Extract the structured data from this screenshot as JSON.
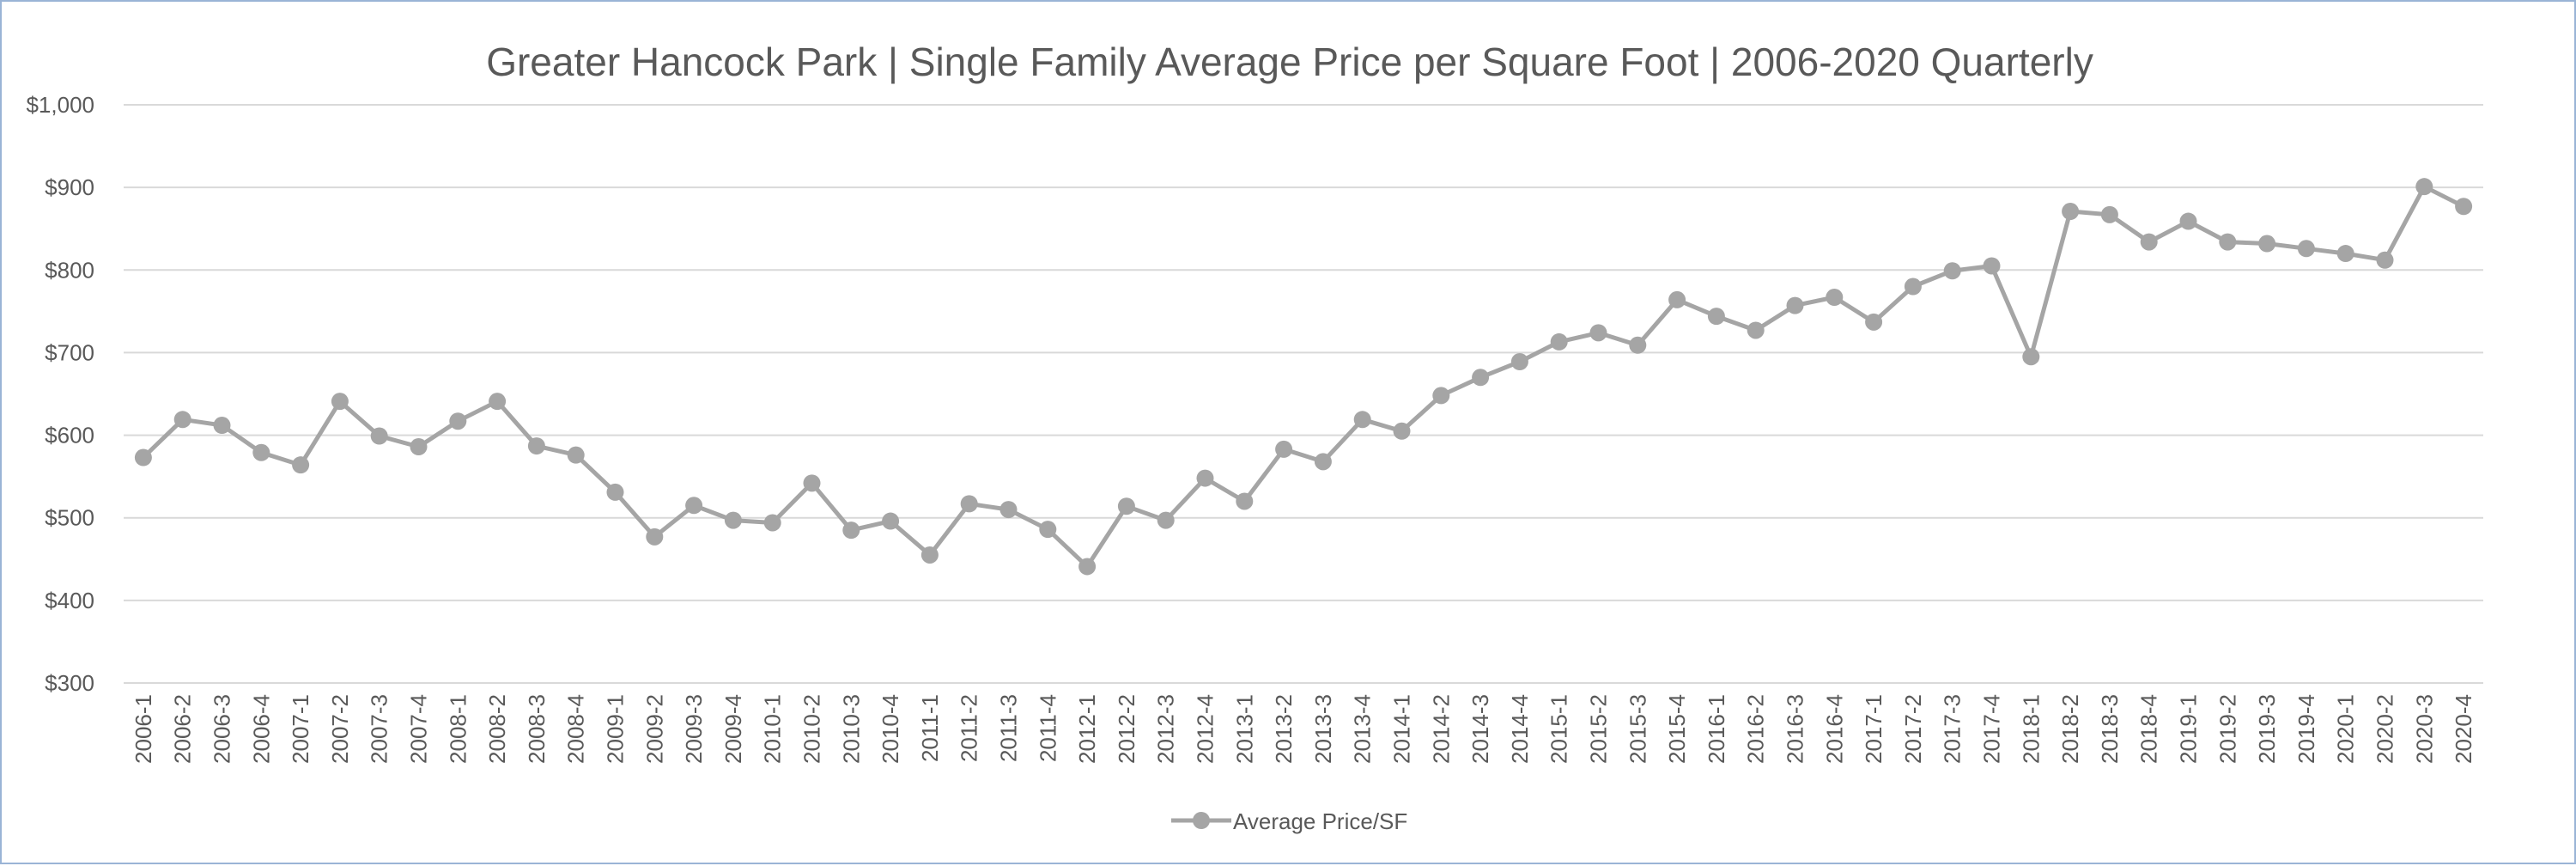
{
  "chart_data": {
    "type": "line",
    "title": "Greater Hancock Park | Single Family Average Price per Square Foot |  2006-2020 Quarterly",
    "xlabel": "",
    "ylabel": "",
    "ylim": [
      300,
      1000
    ],
    "yticks": [
      300,
      400,
      500,
      600,
      700,
      800,
      900,
      1000
    ],
    "ytick_labels": [
      "$300",
      "$400",
      "$500",
      "$600",
      "$700",
      "$800",
      "$900",
      "$1,000"
    ],
    "grid": "horizontal",
    "legend_position": "bottom",
    "colors": {
      "series": "#a5a5a5",
      "grid": "#d9d9d9",
      "text": "#595959",
      "frame": "#9ab4d6"
    },
    "categories": [
      "2006-1",
      "2006-2",
      "2006-3",
      "2006-4",
      "2007-1",
      "2007-2",
      "2007-3",
      "2007-4",
      "2008-1",
      "2008-2",
      "2008-3",
      "2008-4",
      "2009-1",
      "2009-2",
      "2009-3",
      "2009-4",
      "2010-1",
      "2010-2",
      "2010-3",
      "2010-4",
      "2011-1",
      "2011-2",
      "2011-3",
      "2011-4",
      "2012-1",
      "2012-2",
      "2012-3",
      "2012-4",
      "2013-1",
      "2013-2",
      "2013-3",
      "2013-4",
      "2014-1",
      "2014-2",
      "2014-3",
      "2014-4",
      "2015-1",
      "2015-2",
      "2015-3",
      "2015-4",
      "2016-1",
      "2016-2",
      "2016-3",
      "2016-4",
      "2017-1",
      "2017-2",
      "2017-3",
      "2017-4",
      "2018-1",
      "2018-2",
      "2018-3",
      "2018-4",
      "2019-1",
      "2019-2",
      "2019-3",
      "2019-4",
      "2020-1",
      "2020-2",
      "2020-3",
      "2020-4"
    ],
    "series": [
      {
        "name": "Average Price/SF",
        "values": [
          573,
          619,
          612,
          579,
          564,
          641,
          599,
          586,
          617,
          641,
          587,
          576,
          531,
          477,
          515,
          497,
          494,
          542,
          485,
          496,
          455,
          517,
          510,
          486,
          441,
          514,
          497,
          548,
          520,
          583,
          568,
          619,
          605,
          648,
          670,
          689,
          713,
          724,
          709,
          764,
          744,
          727,
          757,
          767,
          737,
          780,
          799,
          805,
          695,
          871,
          867,
          834,
          859,
          834,
          832,
          826,
          820,
          812,
          901,
          877
        ]
      }
    ]
  }
}
